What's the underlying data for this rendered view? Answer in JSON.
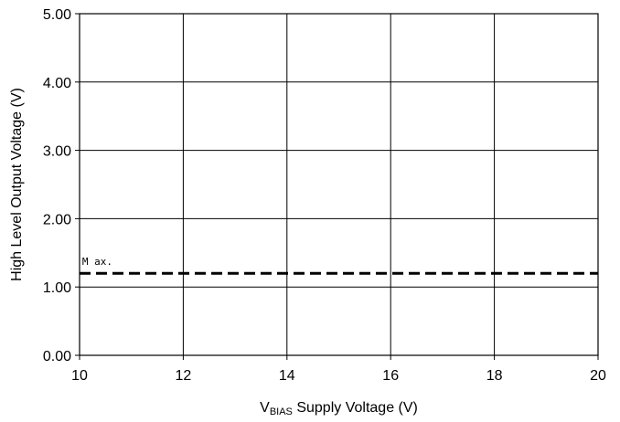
{
  "chart_data": {
    "type": "line",
    "title": "",
    "xlabel_main": "V",
    "xlabel_sub": "BIAS",
    "xlabel_rest": " Supply Voltage (V)",
    "ylabel": "High Level Output Voltage (V)",
    "xlim": [
      10,
      20
    ],
    "ylim": [
      0,
      5
    ],
    "x_ticks": [
      10,
      12,
      14,
      16,
      18,
      20
    ],
    "y_ticks": [
      0,
      1,
      2,
      3,
      4,
      5
    ],
    "x_tick_labels": [
      "10",
      "12",
      "14",
      "16",
      "18",
      "20"
    ],
    "y_tick_labels": [
      "0.00",
      "1.00",
      "2.00",
      "3.00",
      "4.00",
      "5.00"
    ],
    "grid": true,
    "series": [
      {
        "name": "Max.",
        "style": "dashed",
        "color": "#000000",
        "x": [
          10,
          20
        ],
        "y": [
          1.2,
          1.2
        ]
      }
    ],
    "annotations": [
      {
        "text": "M ax.",
        "x": 10.05,
        "y": 1.3
      }
    ]
  }
}
